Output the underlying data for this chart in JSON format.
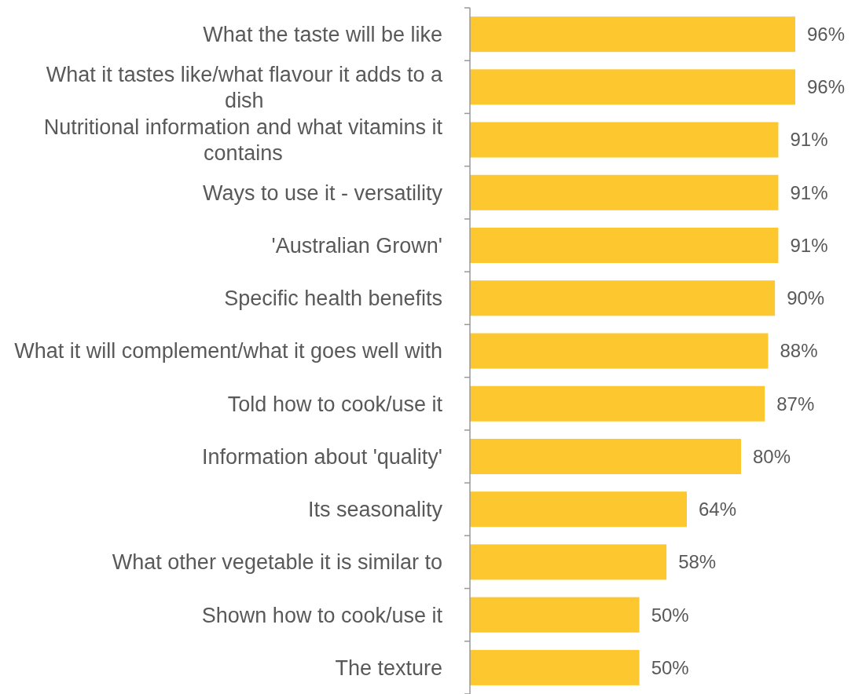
{
  "chart_data": {
    "type": "bar",
    "orientation": "horizontal",
    "categories": [
      "What the taste will be like",
      "What it tastes like/what flavour it adds to a dish",
      "Nutritional information and what vitamins it contains",
      "Ways to use it - versatility",
      "'Australian Grown'",
      "Specific health benefits",
      "What it will complement/what it goes well with",
      "Told how to cook/use it",
      "Information about 'quality'",
      "Its seasonality",
      "What other vegetable it is similar to",
      "Shown how to cook/use it",
      "The texture"
    ],
    "values": [
      96,
      96,
      91,
      91,
      91,
      90,
      88,
      87,
      80,
      64,
      58,
      50,
      50
    ],
    "value_labels": [
      "96%",
      "96%",
      "91%",
      "91%",
      "91%",
      "90%",
      "88%",
      "87%",
      "80%",
      "64%",
      "58%",
      "50%",
      "50%"
    ],
    "color": "#fcc72f"
  }
}
